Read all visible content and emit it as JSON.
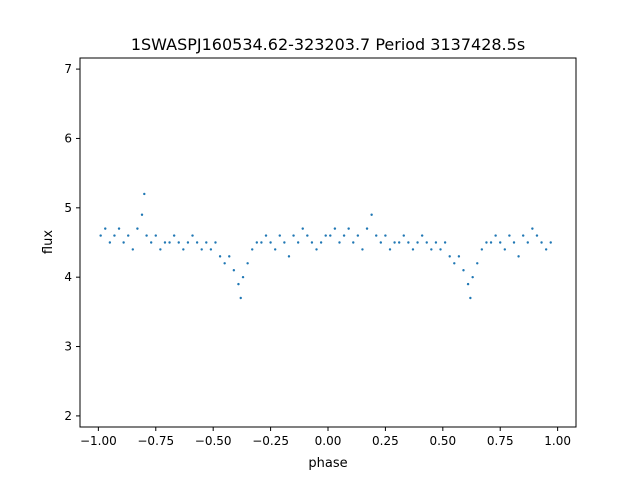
{
  "chart_data": {
    "type": "scatter",
    "title": "1SWASPJ160534.62-323203.7 Period 3137428.5s",
    "xlabel": "phase",
    "ylabel": "flux",
    "xlim": [
      -1.08,
      1.08
    ],
    "ylim": [
      1.84,
      7.16
    ],
    "xticks": [
      -1.0,
      -0.75,
      -0.5,
      -0.25,
      0.0,
      0.25,
      0.5,
      0.75,
      1.0
    ],
    "xtick_labels": [
      "−1.00",
      "−0.75",
      "−0.50",
      "−0.25",
      "0.00",
      "0.25",
      "0.50",
      "0.75",
      "1.00"
    ],
    "yticks": [
      2,
      3,
      4,
      5,
      6,
      7
    ],
    "ytick_labels": [
      "2",
      "3",
      "4",
      "5",
      "6",
      "7"
    ],
    "grid": false,
    "legend": "none",
    "marker_color": "#1f77b4",
    "series": [
      {
        "values_description_note": "",
        "x": [
          -0.99,
          -0.97,
          -0.95,
          -0.93,
          -0.91,
          -0.89,
          -0.87,
          -0.85,
          -0.83,
          -0.81,
          -0.8,
          -0.79,
          -0.77,
          -0.75,
          -0.73,
          -0.71,
          -0.69,
          -0.67,
          -0.65,
          -0.63,
          -0.61,
          -0.59,
          -0.57,
          -0.55,
          -0.53,
          -0.51,
          -0.49,
          -0.47,
          -0.45,
          -0.43,
          -0.41,
          -0.39,
          -0.38,
          -0.37,
          -0.35,
          -0.33,
          -0.31,
          -0.29,
          -0.27,
          -0.25,
          -0.23,
          -0.21,
          -0.19,
          -0.17,
          -0.15,
          -0.13,
          -0.11,
          -0.09,
          -0.07,
          -0.05,
          -0.03,
          -0.01,
          0.01,
          0.03,
          0.05,
          0.07,
          0.09,
          0.11,
          0.13,
          0.15,
          0.17,
          0.19,
          0.21,
          0.23,
          0.25,
          0.27,
          0.29,
          0.31,
          0.33,
          0.35,
          0.37,
          0.39,
          0.41,
          0.43,
          0.45,
          0.47,
          0.49,
          0.51,
          0.53,
          0.55,
          0.57,
          0.59,
          0.61,
          0.62,
          0.63,
          0.65,
          0.67,
          0.69,
          0.71,
          0.73,
          0.75,
          0.77,
          0.79,
          0.81,
          0.83,
          0.85,
          0.87,
          0.89,
          0.91,
          0.93,
          0.95,
          0.97
        ],
        "y": [
          4.6,
          4.7,
          4.5,
          4.6,
          4.7,
          4.5,
          4.6,
          4.4,
          4.7,
          4.9,
          5.2,
          4.6,
          4.5,
          4.6,
          4.4,
          4.5,
          4.5,
          4.6,
          4.5,
          4.4,
          4.5,
          4.6,
          4.5,
          4.4,
          4.5,
          4.4,
          4.5,
          4.3,
          4.2,
          4.3,
          4.1,
          3.9,
          3.7,
          4.0,
          4.2,
          4.4,
          4.5,
          4.5,
          4.6,
          4.5,
          4.4,
          4.6,
          4.5,
          4.3,
          4.6,
          4.5,
          4.7,
          4.6,
          4.5,
          4.4,
          4.5,
          4.6,
          4.6,
          4.7,
          4.5,
          4.6,
          4.7,
          4.5,
          4.6,
          4.4,
          4.7,
          4.9,
          4.6,
          4.5,
          4.6,
          4.4,
          4.5,
          4.5,
          4.6,
          4.5,
          4.4,
          4.5,
          4.6,
          4.5,
          4.4,
          4.5,
          4.4,
          4.5,
          4.3,
          4.2,
          4.3,
          4.1,
          3.9,
          3.7,
          4.0,
          4.2,
          4.4,
          4.5,
          4.5,
          4.6,
          4.5,
          4.4,
          4.6,
          4.5,
          4.3,
          4.6,
          4.5,
          4.7,
          4.6,
          4.5,
          4.4,
          4.5
        ]
      }
    ]
  }
}
